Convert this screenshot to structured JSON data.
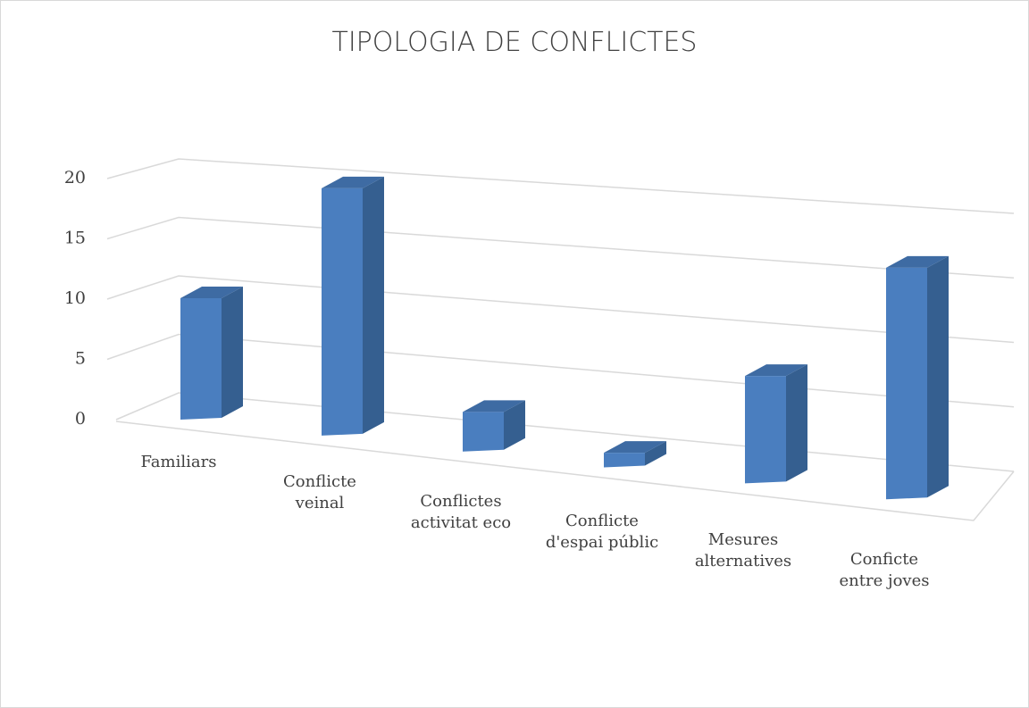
{
  "chart_data": {
    "type": "bar3d",
    "title": "TIPOLOGIA DE CONFLICTES",
    "categories": [
      "Familiars",
      "Conflicte\nveinal",
      "Conflictes\nactivitat eco",
      "Conflicte\nd'espai públic",
      "Mesures\nalternatives",
      "Conficte\nentre joves"
    ],
    "values": [
      10,
      20,
      3,
      1,
      8,
      17
    ],
    "color": "#4a7ebf",
    "ylim": [
      0,
      20
    ],
    "yticks": [
      0,
      5,
      10,
      15,
      20
    ],
    "grid": true
  }
}
